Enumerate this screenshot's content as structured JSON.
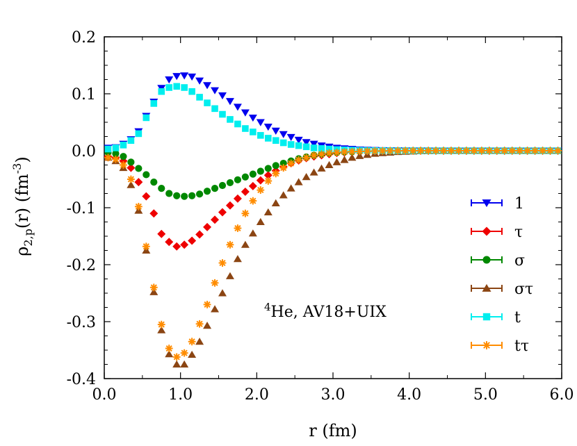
{
  "chart_data": {
    "type": "scatter",
    "title": "",
    "xlabel": "r (fm)",
    "ylabel": {
      "main": "ρ",
      "sub": "2,p",
      "rest": "(r) (fm",
      "sup": "-3",
      "end": ")"
    },
    "annotation": {
      "sup": "4",
      "text": "He, AV18+UIX"
    },
    "xlim": [
      0,
      6
    ],
    "ylim": [
      -0.4,
      0.2
    ],
    "xticks": [
      0,
      1,
      2,
      3,
      4,
      5,
      6
    ],
    "xtick_labels": [
      "0.0",
      "1.0",
      "2.0",
      "3.0",
      "4.0",
      "5.0",
      "6.0"
    ],
    "yticks": [
      -0.4,
      -0.3,
      -0.2,
      -0.1,
      0.0,
      0.1,
      0.2
    ],
    "ytick_labels": [
      "-0.4",
      "-0.3",
      "-0.2",
      "-0.1",
      "0.0",
      "0.1",
      "0.2"
    ],
    "grid": false,
    "legend_position": "bottom-right",
    "series": [
      {
        "name": "1",
        "color": "#0000ee",
        "marker": "triangle-down",
        "x": [
          0.05,
          0.15,
          0.25,
          0.35,
          0.45,
          0.55,
          0.65,
          0.75,
          0.85,
          0.95,
          1.05,
          1.15,
          1.25,
          1.35,
          1.45,
          1.55,
          1.65,
          1.75,
          1.85,
          1.95,
          2.05,
          2.15,
          2.25,
          2.35,
          2.45,
          2.55,
          2.65,
          2.75,
          2.85,
          2.95,
          3.05,
          3.15,
          3.25,
          3.35,
          3.45,
          3.55,
          3.65,
          3.75,
          3.85,
          3.95,
          4.05,
          4.15,
          4.25,
          4.35,
          4.45,
          4.55,
          4.65,
          4.75,
          4.85,
          4.95,
          5.05,
          5.15,
          5.25,
          5.35,
          5.45,
          5.55,
          5.65,
          5.75,
          5.85,
          5.95
        ],
        "y": [
          0.005,
          0.006,
          0.012,
          0.02,
          0.034,
          0.061,
          0.086,
          0.11,
          0.125,
          0.131,
          0.132,
          0.13,
          0.123,
          0.115,
          0.106,
          0.097,
          0.087,
          0.077,
          0.067,
          0.058,
          0.05,
          0.042,
          0.035,
          0.029,
          0.024,
          0.019,
          0.015,
          0.012,
          0.009,
          0.007,
          0.005,
          0.004,
          0.003,
          0.002,
          0.0015,
          0.001,
          0.0008,
          0.0006,
          0.0004,
          0.0003,
          0.0002,
          0.0001,
          0.0001,
          0,
          0,
          0,
          0,
          0,
          0,
          0,
          0,
          0,
          0,
          0,
          0,
          0,
          0,
          0,
          0,
          0
        ]
      },
      {
        "name": "τ",
        "color": "#ee0000",
        "marker": "diamond",
        "x": [
          0.05,
          0.15,
          0.25,
          0.35,
          0.45,
          0.55,
          0.65,
          0.75,
          0.85,
          0.95,
          1.05,
          1.15,
          1.25,
          1.35,
          1.45,
          1.55,
          1.65,
          1.75,
          1.85,
          1.95,
          2.05,
          2.15,
          2.25,
          2.35,
          2.45,
          2.55,
          2.65,
          2.75,
          2.85,
          2.95,
          3.05,
          3.15,
          3.25,
          3.35,
          3.45,
          3.55,
          3.65,
          3.75,
          3.85,
          3.95,
          4.05,
          4.15,
          4.25,
          4.35,
          4.45,
          4.55,
          4.65,
          4.75,
          4.85,
          4.95,
          5.05,
          5.15,
          5.25,
          5.35,
          5.45,
          5.55,
          5.65,
          5.75,
          5.85,
          5.95
        ],
        "y": [
          -0.01,
          -0.012,
          -0.018,
          -0.03,
          -0.055,
          -0.08,
          -0.11,
          -0.146,
          -0.16,
          -0.168,
          -0.165,
          -0.158,
          -0.147,
          -0.134,
          -0.121,
          -0.108,
          -0.096,
          -0.084,
          -0.072,
          -0.062,
          -0.052,
          -0.043,
          -0.035,
          -0.028,
          -0.022,
          -0.017,
          -0.013,
          -0.01,
          -0.008,
          -0.006,
          -0.004,
          -0.003,
          -0.002,
          -0.0015,
          -0.001,
          -0.0007,
          -0.0005,
          -0.0003,
          -0.0002,
          -0.0001,
          0,
          0,
          0,
          0,
          0,
          0,
          0,
          0,
          0,
          0,
          0,
          0,
          0,
          0,
          0,
          0,
          0,
          0,
          0,
          0
        ]
      },
      {
        "name": "σ",
        "color": "#008800",
        "marker": "circle",
        "x": [
          0.05,
          0.15,
          0.25,
          0.35,
          0.45,
          0.55,
          0.65,
          0.75,
          0.85,
          0.95,
          1.05,
          1.15,
          1.25,
          1.35,
          1.45,
          1.55,
          1.65,
          1.75,
          1.85,
          1.95,
          2.05,
          2.15,
          2.25,
          2.35,
          2.45,
          2.55,
          2.65,
          2.75,
          2.85,
          2.95,
          3.05,
          3.15,
          3.25,
          3.35,
          3.45,
          3.55,
          3.65,
          3.75,
          3.85,
          3.95,
          4.05,
          4.15,
          4.25,
          4.35,
          4.45,
          4.55,
          4.65,
          4.75,
          4.85,
          4.95,
          5.05,
          5.15,
          5.25,
          5.35,
          5.45,
          5.55,
          5.65,
          5.75,
          5.85,
          5.95
        ],
        "y": [
          -0.003,
          -0.005,
          -0.01,
          -0.02,
          -0.031,
          -0.042,
          -0.055,
          -0.066,
          -0.075,
          -0.079,
          -0.08,
          -0.079,
          -0.076,
          -0.071,
          -0.066,
          -0.061,
          -0.056,
          -0.051,
          -0.046,
          -0.041,
          -0.036,
          -0.031,
          -0.026,
          -0.022,
          -0.018,
          -0.014,
          -0.011,
          -0.008,
          -0.006,
          -0.004,
          -0.003,
          -0.002,
          -0.0015,
          -0.001,
          -0.0008,
          -0.0005,
          -0.0003,
          -0.0002,
          -0.0001,
          0,
          0,
          0,
          0,
          0,
          0,
          0,
          0,
          0,
          0,
          0,
          0,
          0,
          0,
          0,
          0,
          0,
          0,
          0,
          0,
          0
        ]
      },
      {
        "name": "στ",
        "color": "#8b4513",
        "marker": "triangle-up",
        "x": [
          0.05,
          0.15,
          0.25,
          0.35,
          0.45,
          0.55,
          0.65,
          0.75,
          0.85,
          0.95,
          1.05,
          1.15,
          1.25,
          1.35,
          1.45,
          1.55,
          1.65,
          1.75,
          1.85,
          1.95,
          2.05,
          2.15,
          2.25,
          2.35,
          2.45,
          2.55,
          2.65,
          2.75,
          2.85,
          2.95,
          3.05,
          3.15,
          3.25,
          3.35,
          3.45,
          3.55,
          3.65,
          3.75,
          3.85,
          3.95,
          4.05,
          4.15,
          4.25,
          4.35,
          4.45,
          4.55,
          4.65,
          4.75,
          4.85,
          4.95,
          5.05,
          5.15,
          5.25,
          5.35,
          5.45,
          5.55,
          5.65,
          5.75,
          5.85,
          5.95
        ],
        "y": [
          -0.012,
          -0.018,
          -0.03,
          -0.06,
          -0.105,
          -0.175,
          -0.248,
          -0.315,
          -0.357,
          -0.375,
          -0.375,
          -0.358,
          -0.335,
          -0.307,
          -0.278,
          -0.25,
          -0.22,
          -0.19,
          -0.165,
          -0.145,
          -0.125,
          -0.108,
          -0.092,
          -0.078,
          -0.066,
          -0.055,
          -0.046,
          -0.038,
          -0.031,
          -0.025,
          -0.02,
          -0.016,
          -0.012,
          -0.009,
          -0.007,
          -0.005,
          -0.004,
          -0.003,
          -0.002,
          -0.0015,
          -0.001,
          -0.0005,
          -0.0003,
          0,
          0,
          0,
          0,
          0,
          0,
          0,
          0,
          0,
          0,
          0,
          0,
          0,
          0,
          0,
          0,
          0
        ]
      },
      {
        "name": "t",
        "color": "#00eeee",
        "marker": "square",
        "x": [
          0.05,
          0.15,
          0.25,
          0.35,
          0.45,
          0.55,
          0.65,
          0.75,
          0.85,
          0.95,
          1.05,
          1.15,
          1.25,
          1.35,
          1.45,
          1.55,
          1.65,
          1.75,
          1.85,
          1.95,
          2.05,
          2.15,
          2.25,
          2.35,
          2.45,
          2.55,
          2.65,
          2.75,
          2.85,
          2.95,
          3.05,
          3.15,
          3.25,
          3.35,
          3.45,
          3.55,
          3.65,
          3.75,
          3.85,
          3.95,
          4.05,
          4.15,
          4.25,
          4.35,
          4.45,
          4.55,
          4.65,
          4.75,
          4.85,
          4.95,
          5.05,
          5.15,
          5.25,
          5.35,
          5.45,
          5.55,
          5.65,
          5.75,
          5.85,
          5.95
        ],
        "y": [
          0.003,
          0.005,
          0.01,
          0.018,
          0.03,
          0.058,
          0.083,
          0.104,
          0.111,
          0.113,
          0.111,
          0.104,
          0.094,
          0.084,
          0.074,
          0.064,
          0.055,
          0.047,
          0.039,
          0.033,
          0.027,
          0.022,
          0.018,
          0.014,
          0.011,
          0.009,
          0.007,
          0.005,
          0.004,
          0.003,
          0.002,
          0.0015,
          0.001,
          0.0007,
          0.0005,
          0.0003,
          0.0002,
          0.0001,
          0,
          0,
          0,
          0,
          0,
          0,
          0,
          0,
          0,
          0,
          0,
          0,
          0,
          0,
          0,
          0,
          0,
          0,
          0,
          0,
          0,
          0
        ]
      },
      {
        "name": "tτ",
        "color": "#ff8c00",
        "marker": "asterisk",
        "x": [
          0.05,
          0.15,
          0.25,
          0.35,
          0.45,
          0.55,
          0.65,
          0.75,
          0.85,
          0.95,
          1.05,
          1.15,
          1.25,
          1.35,
          1.45,
          1.55,
          1.65,
          1.75,
          1.85,
          1.95,
          2.05,
          2.15,
          2.25,
          2.35,
          2.45,
          2.55,
          2.65,
          2.75,
          2.85,
          2.95,
          3.05,
          3.15,
          3.25,
          3.35,
          3.45,
          3.55,
          3.65,
          3.75,
          3.85,
          3.95,
          4.05,
          4.15,
          4.25,
          4.35,
          4.45,
          4.55,
          4.65,
          4.75,
          4.85,
          4.95,
          5.05,
          5.15,
          5.25,
          5.35,
          5.45,
          5.55,
          5.65,
          5.75,
          5.85,
          5.95
        ],
        "y": [
          -0.012,
          -0.015,
          -0.025,
          -0.05,
          -0.098,
          -0.168,
          -0.24,
          -0.305,
          -0.347,
          -0.362,
          -0.355,
          -0.335,
          -0.304,
          -0.27,
          -0.232,
          -0.197,
          -0.165,
          -0.136,
          -0.11,
          -0.088,
          -0.069,
          -0.053,
          -0.04,
          -0.03,
          -0.022,
          -0.016,
          -0.012,
          -0.008,
          -0.006,
          -0.004,
          -0.003,
          -0.002,
          -0.0015,
          -0.001,
          -0.0007,
          -0.0005,
          -0.0003,
          -0.0002,
          -0.0001,
          0,
          0,
          0,
          0,
          0,
          0,
          0,
          0,
          0,
          0,
          0,
          0,
          0,
          0,
          0,
          0,
          0,
          0,
          0,
          0,
          0
        ]
      }
    ]
  }
}
